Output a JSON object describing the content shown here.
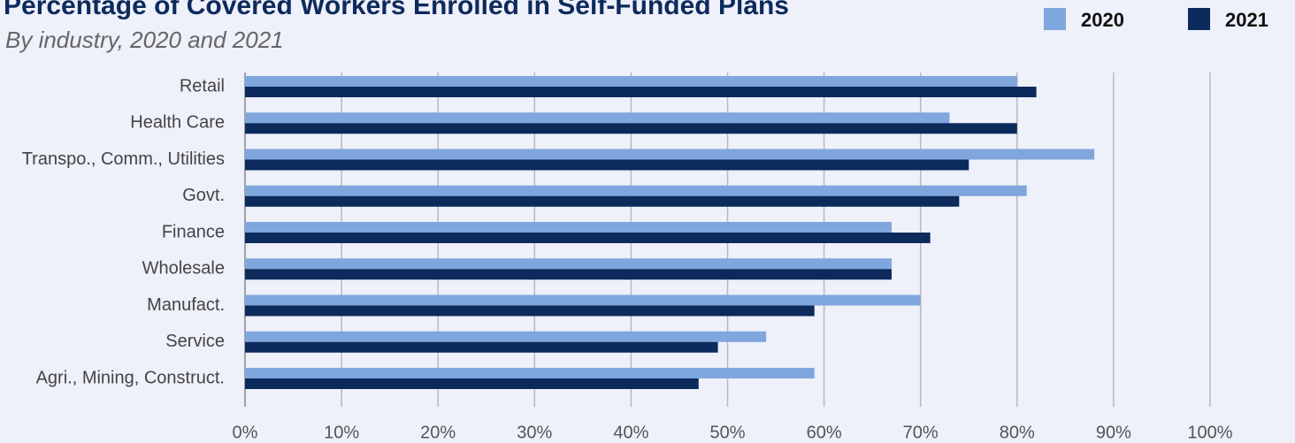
{
  "chart_data": {
    "type": "hbar",
    "title": "Percentage of Covered Workers Enrolled in Self-Funded Plans",
    "subtitle": "By industry, 2020 and 2021",
    "categories": [
      "Retail",
      "Health Care",
      "Transpo., Comm., Utilities",
      "Govt.",
      "Finance",
      "Wholesale",
      "Manufact.",
      "Service",
      "Agri., Mining, Construct."
    ],
    "series": [
      {
        "name": "2020",
        "color": "#7fa6dd",
        "values": [
          80,
          73,
          88,
          81,
          67,
          67,
          70,
          54,
          59
        ]
      },
      {
        "name": "2021",
        "color": "#0c2a5c",
        "values": [
          82,
          80,
          75,
          74,
          71,
          67,
          59,
          49,
          47
        ]
      }
    ],
    "xlim": [
      0,
      100
    ],
    "xticks": [
      {
        "value": 0,
        "label": "0%"
      },
      {
        "value": 10,
        "label": "10%"
      },
      {
        "value": 20,
        "label": "20%"
      },
      {
        "value": 30,
        "label": "30%"
      },
      {
        "value": 40,
        "label": "40%"
      },
      {
        "value": 50,
        "label": "50%"
      },
      {
        "value": 60,
        "label": "60%"
      },
      {
        "value": 70,
        "label": "70%"
      },
      {
        "value": 80,
        "label": "80%"
      },
      {
        "value": 90,
        "label": "90%"
      },
      {
        "value": 100,
        "label": "100%"
      }
    ],
    "grid": true,
    "legend": "top-right"
  }
}
